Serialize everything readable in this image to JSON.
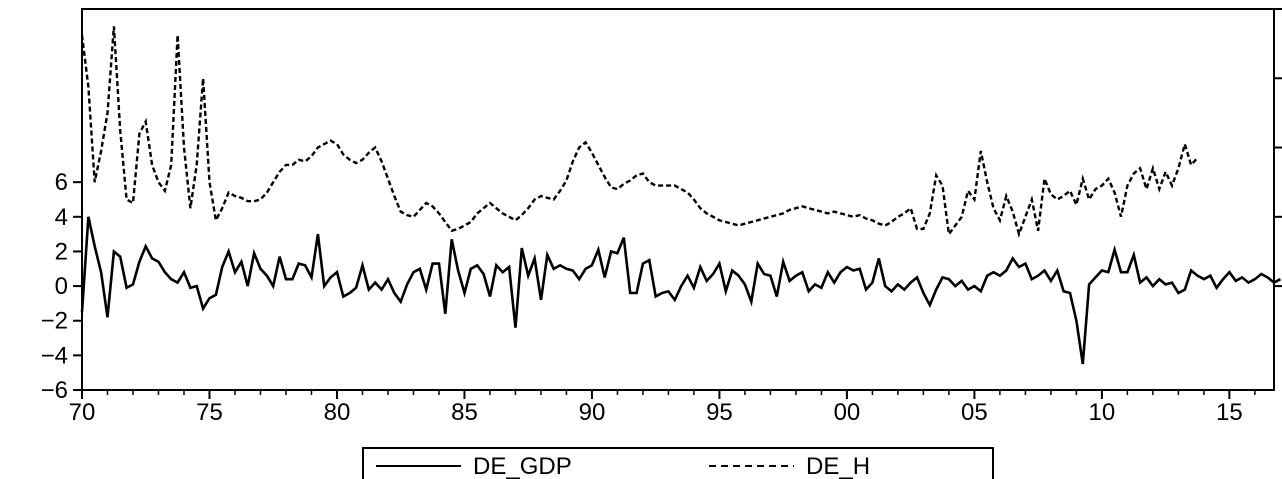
{
  "chart_data": {
    "type": "line",
    "title": "",
    "xlabel": "",
    "ylabel": "",
    "xlim": [
      1970.0,
      2016.75
    ],
    "ylim": [
      -6,
      16
    ],
    "x_ticks": [
      "70",
      "75",
      "80",
      "85",
      "90",
      "95",
      "00",
      "05",
      "10",
      "15"
    ],
    "x_tick_values": [
      1970,
      1975,
      1980,
      1985,
      1990,
      1995,
      2000,
      2005,
      2010,
      2015
    ],
    "y_ticks": [
      -6,
      -4,
      -2,
      0,
      2,
      4,
      6
    ],
    "grid": false,
    "legend_position": "bottom-center",
    "series": [
      {
        "name": "DE_GDP",
        "style": "solid",
        "color": "#000000",
        "x_start": 1970.0,
        "x_step": 0.25,
        "values": [
          -1.5,
          4.0,
          2.3,
          0.8,
          -1.8,
          2.0,
          1.7,
          -0.1,
          0.1,
          1.4,
          2.3,
          1.6,
          1.4,
          0.8,
          0.4,
          0.2,
          0.8,
          -0.1,
          0.0,
          -1.3,
          -0.7,
          -0.5,
          1.1,
          2.0,
          0.8,
          1.4,
          0.0,
          1.9,
          1.0,
          0.6,
          0.0,
          1.7,
          0.4,
          0.4,
          1.3,
          1.2,
          0.5,
          3.0,
          0.0,
          0.5,
          0.8,
          -0.6,
          -0.4,
          -0.1,
          1.2,
          -0.2,
          0.2,
          -0.2,
          0.4,
          -0.4,
          -0.9,
          0.1,
          0.8,
          1.0,
          -0.2,
          1.3,
          1.3,
          -1.6,
          2.7,
          0.9,
          -0.4,
          1.0,
          1.2,
          0.7,
          -0.6,
          1.2,
          0.8,
          1.1,
          -2.4,
          2.2,
          0.6,
          1.6,
          -0.8,
          1.8,
          1.0,
          1.2,
          1.0,
          0.9,
          0.4,
          1.0,
          1.2,
          2.1,
          0.5,
          2.0,
          1.9,
          2.8,
          -0.4,
          -0.4,
          1.3,
          1.5,
          -0.6,
          -0.4,
          -0.3,
          -0.8,
          0.0,
          0.6,
          -0.1,
          1.1,
          0.3,
          0.7,
          1.3,
          -0.3,
          0.9,
          0.6,
          0.1,
          -0.9,
          1.3,
          0.7,
          0.6,
          -0.6,
          1.4,
          0.3,
          0.6,
          0.8,
          -0.3,
          0.1,
          -0.1,
          0.8,
          0.2,
          0.8,
          1.1,
          0.9,
          1.0,
          -0.2,
          0.2,
          1.6,
          0.0,
          -0.3,
          0.1,
          -0.2,
          0.2,
          0.5,
          -0.4,
          -1.1,
          -0.2,
          0.5,
          0.4,
          0.0,
          0.3,
          -0.2,
          0.0,
          -0.3,
          0.6,
          0.8,
          0.6,
          0.9,
          1.6,
          1.1,
          1.3,
          0.4,
          0.6,
          0.9,
          0.3,
          0.9,
          -0.3,
          -0.4,
          -2.0,
          -4.5,
          0.1,
          0.5,
          0.9,
          0.8,
          2.1,
          0.8,
          0.8,
          1.8,
          0.2,
          0.5,
          0.0,
          0.4,
          0.1,
          0.2,
          -0.4,
          -0.2,
          0.9,
          0.6,
          0.4,
          0.6,
          -0.1,
          0.4,
          0.8,
          0.3,
          0.5,
          0.2,
          0.4,
          0.7,
          0.5,
          0.2,
          0.4
        ]
      },
      {
        "name": "DE_H",
        "style": "dashed",
        "color": "#000000",
        "x_start": 1970.0,
        "x_step": 0.25,
        "values": [
          14.5,
          11.5,
          6.0,
          7.8,
          10.0,
          15.0,
          9.0,
          5.0,
          4.8,
          8.8,
          9.5,
          7.0,
          6.0,
          5.5,
          7.0,
          14.5,
          8.0,
          4.5,
          7.0,
          12.0,
          6.0,
          3.8,
          4.5,
          5.4,
          5.2,
          5.1,
          4.9,
          4.9,
          5.0,
          5.4,
          6.0,
          6.6,
          7.0,
          7.0,
          7.3,
          7.2,
          7.5,
          8.0,
          8.2,
          8.4,
          8.2,
          7.6,
          7.3,
          7.1,
          7.3,
          7.7,
          8.0,
          7.2,
          6.2,
          5.2,
          4.3,
          4.1,
          4.0,
          4.4,
          4.8,
          4.6,
          4.2,
          3.7,
          3.2,
          3.3,
          3.5,
          3.7,
          4.2,
          4.5,
          4.8,
          4.5,
          4.2,
          4.0,
          3.8,
          4.1,
          4.5,
          5.0,
          5.2,
          5.1,
          5.0,
          5.5,
          6.1,
          7.2,
          8.0,
          8.3,
          7.7,
          7.0,
          6.3,
          5.7,
          5.6,
          5.9,
          6.1,
          6.4,
          6.5,
          6.0,
          5.8,
          5.8,
          5.8,
          5.8,
          5.6,
          5.4,
          5.0,
          4.5,
          4.2,
          4.0,
          3.8,
          3.7,
          3.6,
          3.5,
          3.6,
          3.7,
          3.8,
          3.9,
          4.0,
          4.1,
          4.2,
          4.4,
          4.5,
          4.6,
          4.5,
          4.4,
          4.3,
          4.2,
          4.3,
          4.2,
          4.1,
          4.0,
          4.1,
          3.9,
          3.8,
          3.6,
          3.5,
          3.7,
          4.0,
          4.2,
          4.5,
          3.3,
          3.3,
          4.2,
          6.4,
          5.8,
          3.0,
          3.5,
          4.0,
          5.5,
          5.0,
          7.8,
          6.0,
          4.5,
          3.8,
          5.2,
          4.3,
          3.0,
          4.0,
          5.0,
          3.2,
          6.2,
          5.3,
          5.0,
          5.2,
          5.5,
          4.7,
          6.2,
          5.0,
          5.6,
          5.8,
          6.2,
          5.4,
          4.0,
          5.8,
          6.5,
          6.8,
          5.6,
          6.8,
          5.6,
          6.6,
          5.8,
          6.8,
          8.2,
          7.0,
          7.4
        ]
      }
    ]
  }
}
